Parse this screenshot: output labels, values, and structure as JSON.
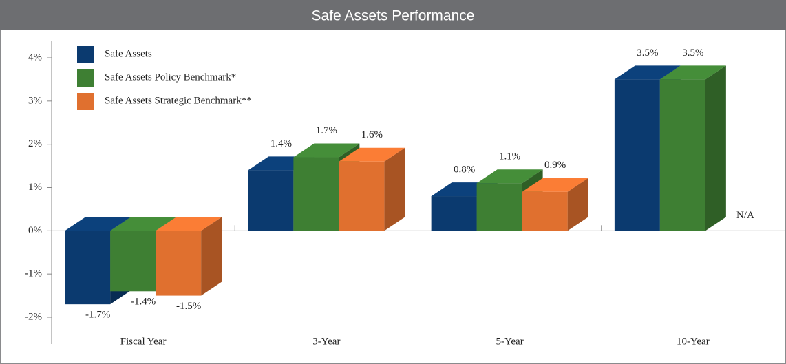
{
  "chart_data": {
    "type": "bar3d",
    "title": "Safe Assets Performance",
    "categories": [
      "Fiscal Year",
      "3-Year",
      "5-Year",
      "10-Year"
    ],
    "series": [
      {
        "name": "Safe Assets",
        "color": "#0b3a6f",
        "values": [
          -1.7,
          1.4,
          0.8,
          3.5
        ],
        "value_labels": [
          "-1.7%",
          "1.4%",
          "0.8%",
          "3.5%"
        ]
      },
      {
        "name": "Safe Assets Policy Benchmark*",
        "color": "#3e7f33",
        "values": [
          -1.4,
          1.7,
          1.1,
          3.5
        ],
        "value_labels": [
          "-1.4%",
          "1.7%",
          "1.1%",
          "3.5%"
        ]
      },
      {
        "name": "Safe Assets Strategic Benchmark**",
        "color": "#e0702f",
        "values": [
          -1.5,
          1.6,
          0.9,
          null
        ],
        "value_labels": [
          "-1.5%",
          "1.6%",
          "0.9%",
          "N/A"
        ]
      }
    ],
    "ylim": [
      -2,
      4
    ],
    "yticks": [
      {
        "value": -2,
        "label": "-2%"
      },
      {
        "value": -1,
        "label": "-1%"
      },
      {
        "value": 0,
        "label": "0%"
      },
      {
        "value": 1,
        "label": "1%"
      },
      {
        "value": 2,
        "label": "2%"
      },
      {
        "value": 3,
        "label": "3%"
      },
      {
        "value": 4,
        "label": "4%"
      }
    ],
    "legend": "upper left"
  }
}
